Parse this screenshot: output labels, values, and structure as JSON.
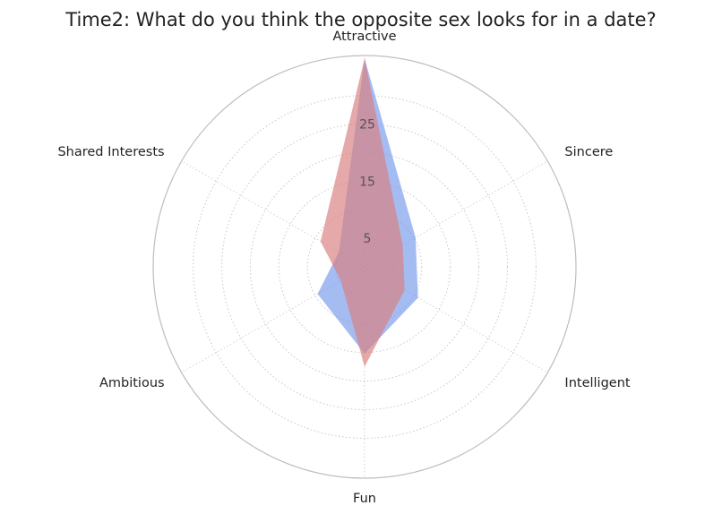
{
  "chart_data": {
    "type": "radar",
    "title": "Time2: What do you think the opposite sex looks for in a date?",
    "categories": [
      "Attractive",
      "Sincere",
      "Intelligent",
      "Fun",
      "Ambitious",
      "Shared Interests"
    ],
    "rlim": [
      0,
      37
    ],
    "rticks": [
      5,
      15,
      25
    ],
    "grid": "dotted",
    "series": [
      {
        "values": [
          36.5,
          10.3,
          10.8,
          15.2,
          9.5,
          5.2
        ],
        "color": "#6d93ea",
        "opacity": 0.62
      },
      {
        "values": [
          36.5,
          7.7,
          8.1,
          17.5,
          4.8,
          8.9
        ],
        "color": "#d98080",
        "opacity": 0.68
      }
    ]
  }
}
